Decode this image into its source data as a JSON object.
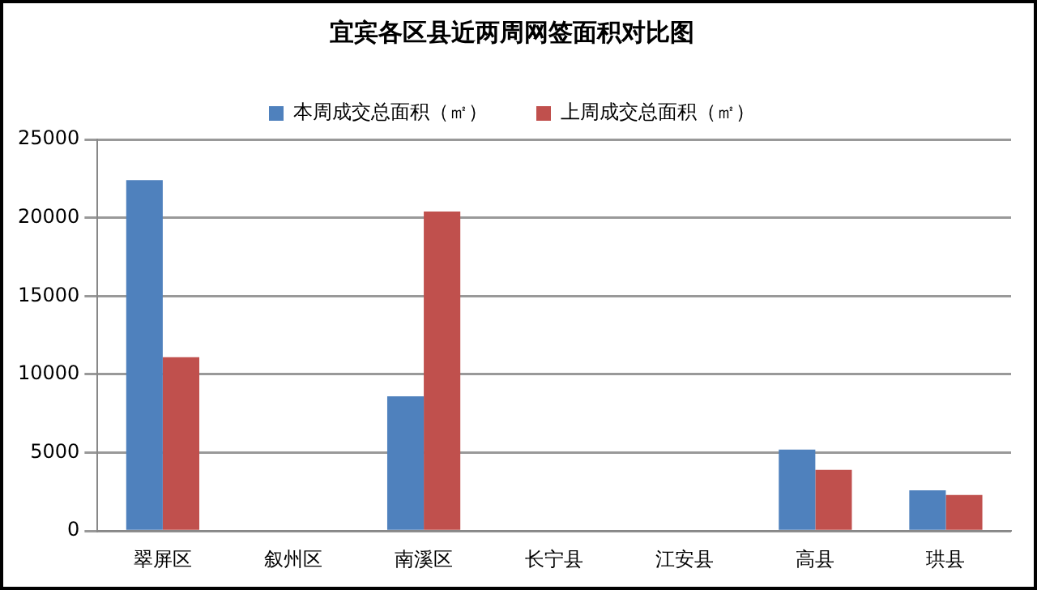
{
  "chart_data": {
    "type": "bar",
    "title": "宜宾各区县近两周网签面积对比图",
    "categories": [
      "翠屏区",
      "叙州区",
      "南溪区",
      "长宁县",
      "江安县",
      "高县",
      "珙县"
    ],
    "series": [
      {
        "name": "本周成交总面积（㎡）",
        "color": "#4f81bd",
        "values": [
          22400,
          0,
          8600,
          0,
          0,
          5200,
          2600
        ]
      },
      {
        "name": "上周成交总面积（㎡）",
        "color": "#c0504d",
        "values": [
          11100,
          0,
          20400,
          0,
          0,
          3900,
          2300
        ]
      }
    ],
    "ylim": [
      0,
      25000
    ],
    "yticks": [
      0,
      5000,
      10000,
      15000,
      20000,
      25000
    ],
    "grid": "y",
    "legend": "top"
  }
}
